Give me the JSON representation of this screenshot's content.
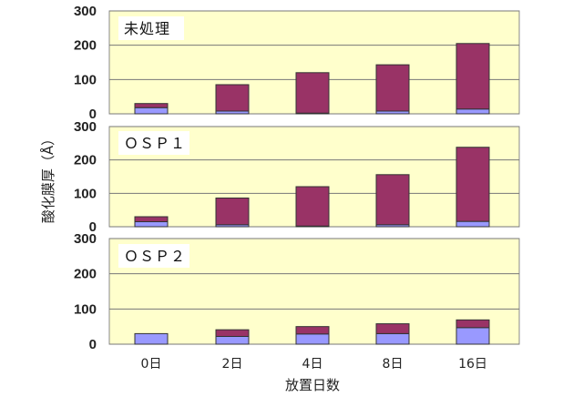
{
  "chart_data": {
    "type": "bar",
    "stacked": true,
    "categories": [
      "0日",
      "2日",
      "4日",
      "8日",
      "16日"
    ],
    "xlabel": "放置日数",
    "ylabel": "酸化膜厚（Å）",
    "ylim": [
      0,
      300
    ],
    "yticks": [
      "0",
      "100",
      "200",
      "300"
    ],
    "grid": true,
    "colors": {
      "lower": "#9999ff",
      "upper": "#993366",
      "panel_bg": "#ffffcc",
      "label_box": "#ffffff"
    },
    "panels": [
      {
        "label": "未処理",
        "series": [
          {
            "values": [
              18,
              8,
              2,
              8,
              14
            ]
          },
          {
            "values": [
              12,
              77,
              118,
              135,
              191
            ]
          }
        ]
      },
      {
        "label": "ＯＳＰ１",
        "series": [
          {
            "values": [
              15,
              6,
              2,
              6,
              16
            ]
          },
          {
            "values": [
              15,
              80,
              118,
              150,
              222
            ]
          }
        ]
      },
      {
        "label": "ＯＳＰ２",
        "series": [
          {
            "values": [
              30,
              22,
              29,
              30,
              47
            ]
          },
          {
            "values": [
              0,
              19,
              21,
              28,
              22
            ]
          }
        ]
      }
    ]
  }
}
